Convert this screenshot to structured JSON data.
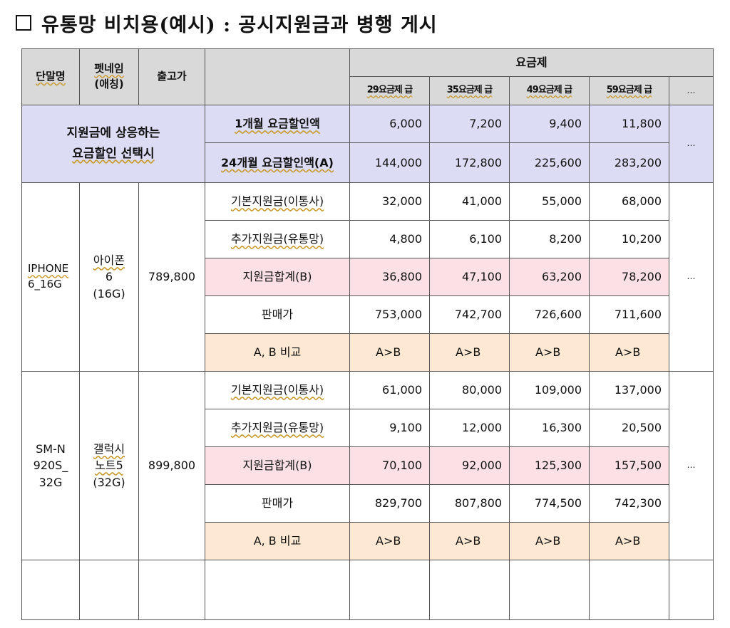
{
  "title": "유통망 비치용(예시) : 공시지원금과 병행 게시",
  "header": {
    "col_model": "단말명",
    "col_petname_1": "펫네임",
    "col_petname_2": "(애칭)",
    "col_price": "출고가",
    "col_plan": "요금제",
    "plans": [
      "29요금제 급",
      "35요금제 급",
      "49요금제 급",
      "59요금제 급"
    ],
    "more": "…"
  },
  "discount": {
    "label_line1": "지원금에 상응하는",
    "label_line2": "요금할인 선택시",
    "rows": [
      {
        "label": "1개월 요금할인액",
        "values": [
          "6,000",
          "7,200",
          "9,400",
          "11,800"
        ]
      },
      {
        "label": "24개월 요금할인액(A)",
        "values": [
          "144,000",
          "172,800",
          "225,600",
          "283,200"
        ]
      }
    ],
    "more": "…"
  },
  "devices": [
    {
      "model_lines": [
        "IPHONE",
        "6_16G"
      ],
      "petname_lines": [
        "아이폰",
        "6",
        "(16G)"
      ],
      "price": "789,800",
      "rows": [
        {
          "label": "기본지원금(이통사)",
          "values": [
            "32,000",
            "41,000",
            "55,000",
            "68,000"
          ]
        },
        {
          "label": "추가지원금(유통망)",
          "values": [
            "4,800",
            "6,100",
            "8,200",
            "10,200"
          ]
        },
        {
          "label": "지원금합계(B)",
          "values": [
            "36,800",
            "47,100",
            "63,200",
            "78,200"
          ]
        },
        {
          "label": "판매가",
          "values": [
            "753,000",
            "742,700",
            "726,600",
            "711,600"
          ]
        },
        {
          "label": "A, B 비교",
          "values": [
            "A>B",
            "A>B",
            "A>B",
            "A>B"
          ]
        }
      ],
      "more": "…"
    },
    {
      "model_lines": [
        "SM-N",
        "920S_",
        "32G"
      ],
      "petname_lines": [
        "갤럭시",
        "노트5",
        "(32G)"
      ],
      "price": "899,800",
      "rows": [
        {
          "label": "기본지원금(이통사)",
          "values": [
            "61,000",
            "80,000",
            "109,000",
            "137,000"
          ]
        },
        {
          "label": "추가지원금(유통망)",
          "values": [
            "9,100",
            "12,000",
            "16,300",
            "20,500"
          ]
        },
        {
          "label": "지원금합계(B)",
          "values": [
            "70,100",
            "92,000",
            "125,300",
            "157,500"
          ]
        },
        {
          "label": "판매가",
          "values": [
            "829,700",
            "807,800",
            "774,500",
            "742,300"
          ]
        },
        {
          "label": "A, B 비교",
          "values": [
            "A>B",
            "A>B",
            "A>B",
            "A>B"
          ]
        }
      ],
      "more": "…"
    }
  ]
}
